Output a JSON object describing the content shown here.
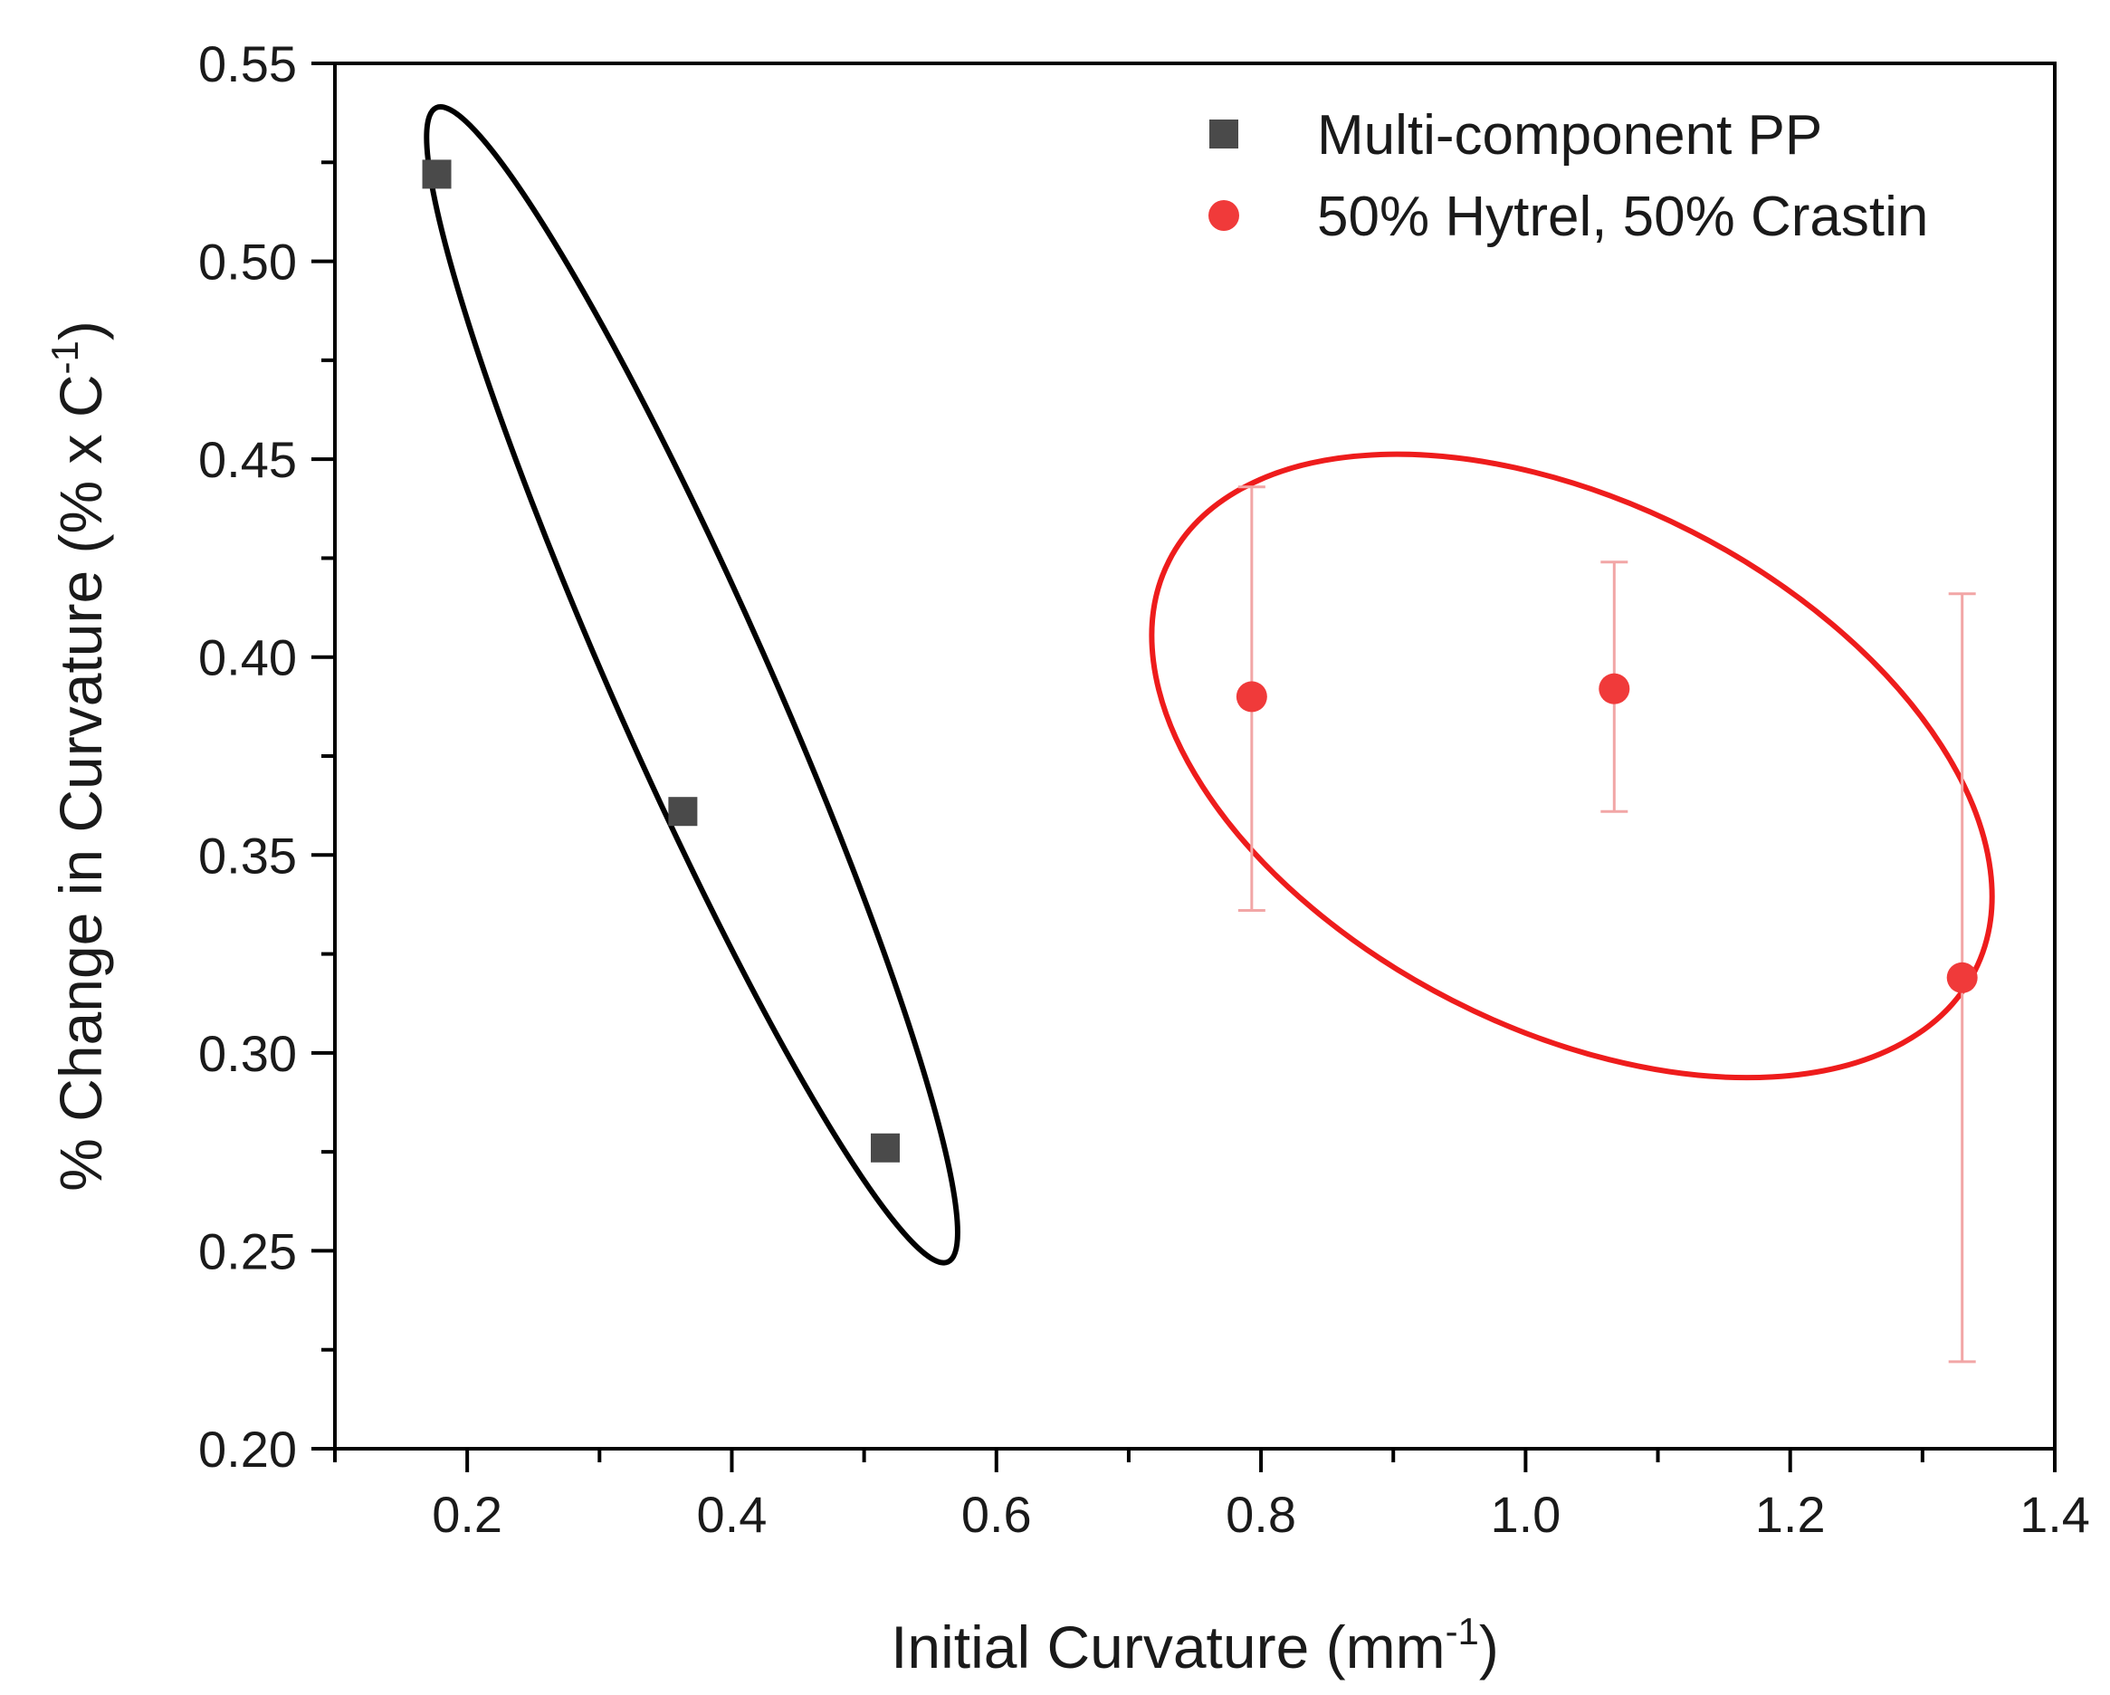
{
  "chart_data": {
    "type": "scatter",
    "xlabel": "Initial Curvature (mm",
    "xlabel_sup": "-1",
    "xlabel_end": ")",
    "ylabel": "% Change in Curvature  (% x C",
    "ylabel_sup": "-1",
    "ylabel_end": ")",
    "xlim": [
      0.1,
      1.4
    ],
    "ylim": [
      0.2,
      0.55
    ],
    "x_ticks": [
      0.2,
      0.4,
      0.6,
      0.8,
      1.0,
      1.2,
      1.4
    ],
    "x_tick_labels": [
      "0.2",
      "0.4",
      "0.6",
      "0.8",
      "1.0",
      "1.2",
      "1.4"
    ],
    "y_ticks": [
      0.2,
      0.25,
      0.3,
      0.35,
      0.4,
      0.45,
      0.5,
      0.55
    ],
    "y_tick_labels": [
      "0.20",
      "0.25",
      "0.30",
      "0.35",
      "0.40",
      "0.45",
      "0.50",
      "0.55"
    ],
    "grid": false,
    "legend_position": "top-right",
    "series": [
      {
        "name": "Multi-component PP",
        "marker": "square",
        "color": "#4a4a4a",
        "x": [
          0.177,
          0.363,
          0.516
        ],
        "y": [
          0.522,
          0.361,
          0.276
        ]
      },
      {
        "name": "50% Hytrel, 50% Crastin",
        "marker": "circle",
        "color": "#f03a3a",
        "errorbar_color": "#f2a6a6",
        "x": [
          0.793,
          1.067,
          1.33
        ],
        "y": [
          0.39,
          0.392,
          0.319
        ],
        "yerr_low": [
          0.336,
          0.361,
          0.222
        ],
        "yerr_high": [
          0.443,
          0.424,
          0.416
        ]
      }
    ],
    "annotations": [
      {
        "shape": "ellipse",
        "color": "#000000",
        "x_range": [
          0.16,
          0.58
        ],
        "y_range": [
          0.248,
          0.538
        ],
        "tilt": "down-right"
      },
      {
        "shape": "ellipse",
        "color": "#ee1c1c",
        "x_range": [
          0.7,
          1.37
        ],
        "y_range": [
          0.285,
          0.46
        ],
        "tilt": "down-right"
      }
    ]
  }
}
